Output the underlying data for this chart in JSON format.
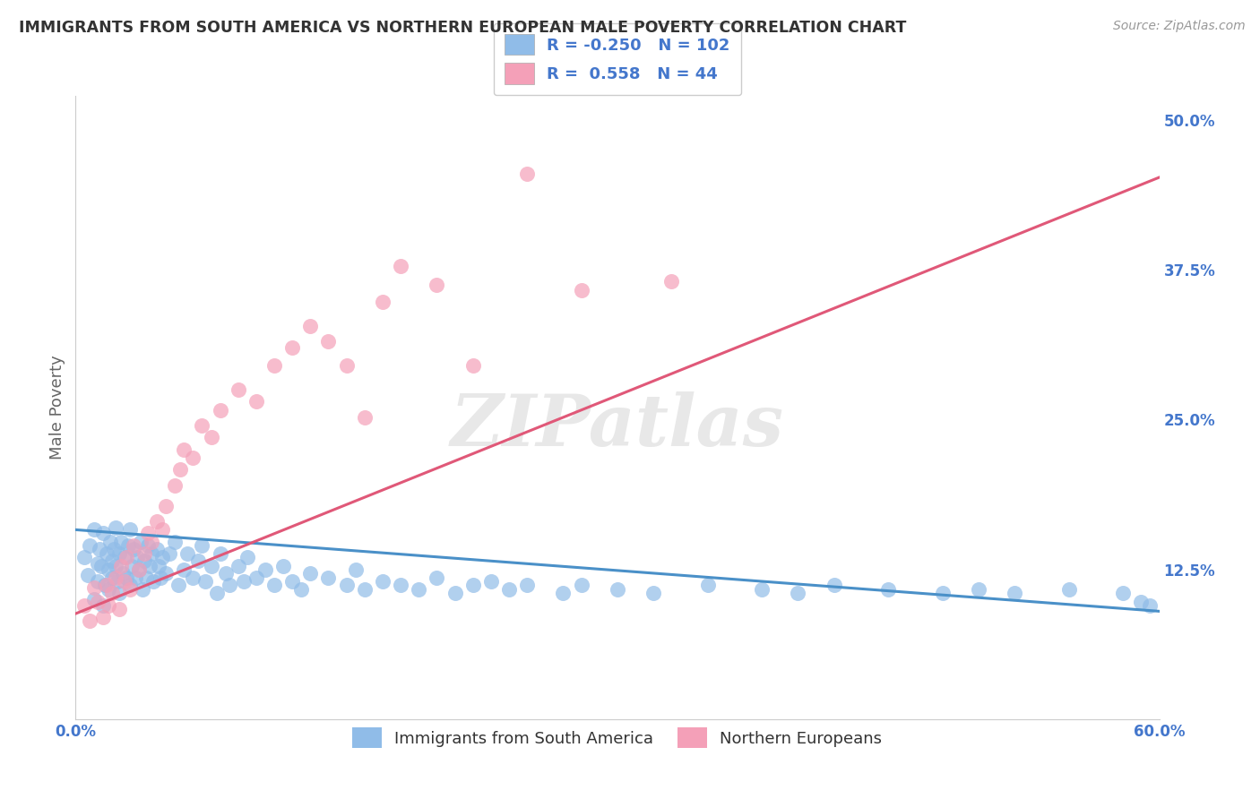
{
  "title": "IMMIGRANTS FROM SOUTH AMERICA VS NORTHERN EUROPEAN MALE POVERTY CORRELATION CHART",
  "source": "Source: ZipAtlas.com",
  "ylabel": "Male Poverty",
  "xlim": [
    0.0,
    0.6
  ],
  "ylim": [
    0.0,
    0.52
  ],
  "yticks_right": [
    0.0,
    0.125,
    0.25,
    0.375,
    0.5
  ],
  "ytick_labels_right": [
    "",
    "12.5%",
    "25.0%",
    "37.5%",
    "50.0%"
  ],
  "xticks": [
    0.0,
    0.1,
    0.2,
    0.3,
    0.4,
    0.5,
    0.6
  ],
  "xtick_labels": [
    "0.0%",
    "",
    "",
    "",
    "",
    "",
    "60.0%"
  ],
  "blue_R": -0.25,
  "blue_N": 102,
  "pink_R": 0.558,
  "pink_N": 44,
  "blue_color": "#90bce8",
  "pink_color": "#f4a0b8",
  "blue_line_color": "#4a90c8",
  "pink_line_color": "#e05878",
  "legend_label_blue": "Immigrants from South America",
  "legend_label_pink": "Northern Europeans",
  "watermark": "ZIPatlas",
  "background_color": "#ffffff",
  "grid_color": "#d8d8d8",
  "title_color": "#333333",
  "axis_label_color": "#666666",
  "tick_label_color": "#4477cc",
  "blue_line_start_y": 0.158,
  "blue_line_end_y": 0.09,
  "pink_line_start_y": 0.088,
  "pink_line_end_y": 0.452,
  "blue_scatter_x": [
    0.005,
    0.007,
    0.008,
    0.01,
    0.01,
    0.012,
    0.012,
    0.013,
    0.014,
    0.015,
    0.015,
    0.016,
    0.017,
    0.018,
    0.018,
    0.019,
    0.02,
    0.02,
    0.021,
    0.022,
    0.022,
    0.023,
    0.024,
    0.024,
    0.025,
    0.026,
    0.027,
    0.028,
    0.029,
    0.03,
    0.03,
    0.031,
    0.032,
    0.033,
    0.034,
    0.035,
    0.036,
    0.037,
    0.038,
    0.039,
    0.04,
    0.041,
    0.042,
    0.043,
    0.045,
    0.046,
    0.047,
    0.048,
    0.05,
    0.052,
    0.055,
    0.057,
    0.06,
    0.062,
    0.065,
    0.068,
    0.07,
    0.072,
    0.075,
    0.078,
    0.08,
    0.083,
    0.085,
    0.09,
    0.093,
    0.095,
    0.1,
    0.105,
    0.11,
    0.115,
    0.12,
    0.125,
    0.13,
    0.14,
    0.15,
    0.155,
    0.16,
    0.17,
    0.18,
    0.19,
    0.2,
    0.21,
    0.22,
    0.23,
    0.24,
    0.25,
    0.27,
    0.28,
    0.3,
    0.32,
    0.35,
    0.38,
    0.4,
    0.42,
    0.45,
    0.48,
    0.5,
    0.52,
    0.55,
    0.58,
    0.59,
    0.595
  ],
  "blue_scatter_y": [
    0.135,
    0.12,
    0.145,
    0.158,
    0.1,
    0.13,
    0.115,
    0.142,
    0.128,
    0.155,
    0.095,
    0.112,
    0.138,
    0.108,
    0.125,
    0.148,
    0.132,
    0.118,
    0.142,
    0.128,
    0.16,
    0.115,
    0.138,
    0.105,
    0.148,
    0.122,
    0.135,
    0.118,
    0.145,
    0.158,
    0.112,
    0.128,
    0.142,
    0.118,
    0.135,
    0.125,
    0.148,
    0.108,
    0.132,
    0.118,
    0.145,
    0.128,
    0.138,
    0.115,
    0.142,
    0.128,
    0.118,
    0.135,
    0.122,
    0.138,
    0.148,
    0.112,
    0.125,
    0.138,
    0.118,
    0.132,
    0.145,
    0.115,
    0.128,
    0.105,
    0.138,
    0.122,
    0.112,
    0.128,
    0.115,
    0.135,
    0.118,
    0.125,
    0.112,
    0.128,
    0.115,
    0.108,
    0.122,
    0.118,
    0.112,
    0.125,
    0.108,
    0.115,
    0.112,
    0.108,
    0.118,
    0.105,
    0.112,
    0.115,
    0.108,
    0.112,
    0.105,
    0.112,
    0.108,
    0.105,
    0.112,
    0.108,
    0.105,
    0.112,
    0.108,
    0.105,
    0.108,
    0.105,
    0.108,
    0.105,
    0.098,
    0.095
  ],
  "pink_scatter_x": [
    0.005,
    0.008,
    0.01,
    0.012,
    0.015,
    0.017,
    0.018,
    0.02,
    0.022,
    0.024,
    0.025,
    0.027,
    0.028,
    0.03,
    0.032,
    0.035,
    0.038,
    0.04,
    0.042,
    0.045,
    0.048,
    0.05,
    0.055,
    0.058,
    0.06,
    0.065,
    0.07,
    0.075,
    0.08,
    0.09,
    0.1,
    0.11,
    0.12,
    0.13,
    0.14,
    0.15,
    0.16,
    0.17,
    0.18,
    0.2,
    0.22,
    0.25,
    0.28,
    0.33
  ],
  "pink_scatter_y": [
    0.095,
    0.082,
    0.11,
    0.098,
    0.085,
    0.112,
    0.095,
    0.105,
    0.118,
    0.092,
    0.128,
    0.115,
    0.135,
    0.108,
    0.145,
    0.125,
    0.138,
    0.155,
    0.148,
    0.165,
    0.158,
    0.178,
    0.195,
    0.208,
    0.225,
    0.218,
    0.245,
    0.235,
    0.258,
    0.275,
    0.265,
    0.295,
    0.31,
    0.328,
    0.315,
    0.295,
    0.252,
    0.348,
    0.378,
    0.362,
    0.295,
    0.455,
    0.358,
    0.365
  ]
}
